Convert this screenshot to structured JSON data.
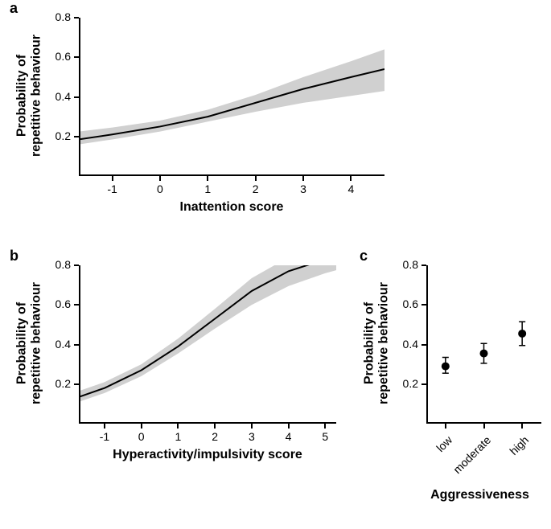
{
  "background_color": "#ffffff",
  "text_color": "#000000",
  "axis_color": "#000000",
  "panels": {
    "a": {
      "label": "a",
      "label_fontsize": 18,
      "type": "line",
      "xlabel": "Inattention score",
      "ylabel": "Probability of\nrepetitive behaviour",
      "label_fontweight": "bold",
      "axis_label_fontsize": 16,
      "tick_fontsize": 14,
      "ylim": [
        0,
        0.8
      ],
      "yticks": [
        0.2,
        0.4,
        0.6,
        0.8
      ],
      "xlim": [
        -1.7,
        4.7
      ],
      "xticks": [
        -1,
        0,
        1,
        2,
        3,
        4
      ],
      "line_color": "#000000",
      "line_width": 2,
      "band_color": "#d0d0d0",
      "band_opacity": 1.0,
      "x": [
        -1.7,
        -1.0,
        0.0,
        1.0,
        2.0,
        3.0,
        4.0,
        4.7
      ],
      "y": [
        0.185,
        0.21,
        0.25,
        0.3,
        0.37,
        0.44,
        0.5,
        0.54
      ],
      "y_lo": [
        0.16,
        0.185,
        0.225,
        0.275,
        0.325,
        0.37,
        0.405,
        0.43
      ],
      "y_hi": [
        0.225,
        0.245,
        0.28,
        0.335,
        0.41,
        0.5,
        0.58,
        0.64
      ]
    },
    "b": {
      "label": "b",
      "label_fontsize": 18,
      "type": "line",
      "xlabel": "Hyperactivity/impulsivity score",
      "ylabel": "Probability of\nrepetitive behaviour",
      "label_fontweight": "bold",
      "axis_label_fontsize": 16,
      "tick_fontsize": 14,
      "ylim": [
        0,
        0.8
      ],
      "yticks": [
        0.2,
        0.4,
        0.6,
        0.8
      ],
      "xlim": [
        -1.7,
        5.3
      ],
      "xticks": [
        -1,
        0,
        1,
        2,
        3,
        4,
        5
      ],
      "line_color": "#000000",
      "line_width": 2,
      "band_color": "#d0d0d0",
      "band_opacity": 1.0,
      "x": [
        -1.7,
        -1.0,
        0.0,
        1.0,
        2.0,
        3.0,
        4.0,
        5.0,
        5.3
      ],
      "y": [
        0.135,
        0.18,
        0.27,
        0.39,
        0.53,
        0.67,
        0.77,
        0.83,
        0.845
      ],
      "y_lo": [
        0.11,
        0.155,
        0.24,
        0.355,
        0.48,
        0.6,
        0.695,
        0.76,
        0.775
      ],
      "y_hi": [
        0.165,
        0.21,
        0.3,
        0.43,
        0.58,
        0.735,
        0.84,
        0.895,
        0.905
      ]
    },
    "c": {
      "label": "c",
      "label_fontsize": 18,
      "type": "errorbar",
      "xlabel": "Aggressiveness",
      "ylabel": "Probability of\nrepetitive behaviour",
      "label_fontweight": "bold",
      "axis_label_fontsize": 16,
      "tick_fontsize": 14,
      "ylim": [
        0,
        0.8
      ],
      "yticks": [
        0.2,
        0.4,
        0.6,
        0.8
      ],
      "categories": [
        "low",
        "moderate",
        "high"
      ],
      "means": [
        0.29,
        0.355,
        0.455
      ],
      "err_lo": [
        0.255,
        0.305,
        0.395
      ],
      "err_hi": [
        0.335,
        0.405,
        0.515
      ],
      "marker_color": "#000000",
      "marker_size": 5,
      "errorbar_color": "#000000",
      "errorbar_width": 1.5,
      "cap_width": 8
    }
  }
}
